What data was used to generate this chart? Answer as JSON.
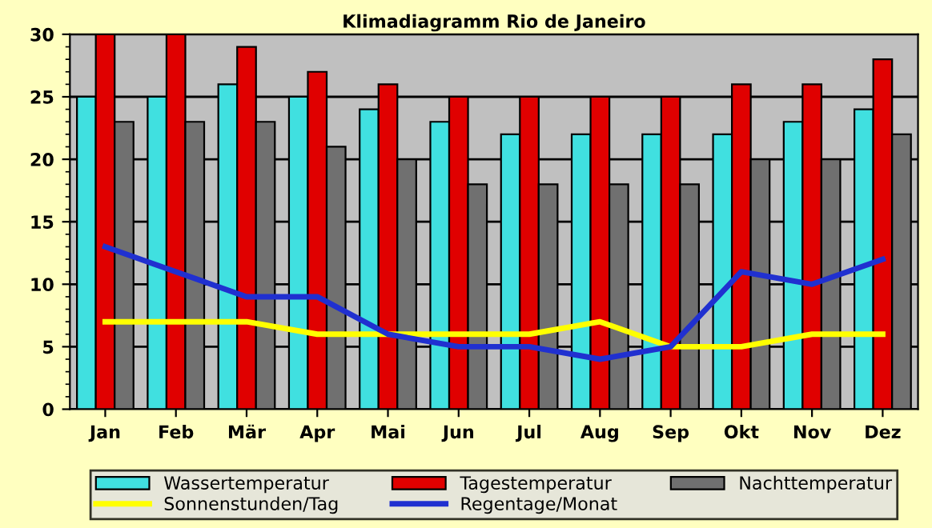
{
  "chart_data": {
    "type": "bar",
    "title": "Klimadiagramm Rio de Janeiro",
    "categories": [
      "Jan",
      "Feb",
      "Mär",
      "Apr",
      "Mai",
      "Jun",
      "Jul",
      "Aug",
      "Sep",
      "Okt",
      "Nov",
      "Dez"
    ],
    "series": [
      {
        "name": "Wassertemperatur",
        "color": "#40e0e0",
        "values": [
          25,
          25,
          26,
          25,
          24,
          23,
          22,
          22,
          22,
          22,
          23,
          24
        ]
      },
      {
        "name": "Tagestemperatur",
        "color": "#e00000",
        "values": [
          30,
          30,
          29,
          27,
          26,
          25,
          25,
          25,
          25,
          26,
          26,
          28
        ]
      },
      {
        "name": "Nachttemperatur",
        "color": "#707070",
        "values": [
          23,
          23,
          23,
          21,
          20,
          18,
          18,
          18,
          18,
          20,
          20,
          22
        ]
      },
      {
        "name": "Sonnenstunden/Tag",
        "type": "line",
        "color": "#ffff00",
        "values": [
          7,
          7,
          7,
          6,
          6,
          6,
          6,
          7,
          5,
          5,
          6,
          6
        ]
      },
      {
        "name": "Regentage/Monat",
        "type": "line",
        "color": "#2030d0",
        "values": [
          13,
          11,
          9,
          9,
          6,
          5,
          5,
          4,
          5,
          11,
          10,
          12
        ]
      }
    ],
    "ylim": [
      0,
      30
    ],
    "yticks": [
      0,
      5,
      10,
      15,
      20,
      25,
      30
    ],
    "grid": "y",
    "legend": "bottom"
  }
}
